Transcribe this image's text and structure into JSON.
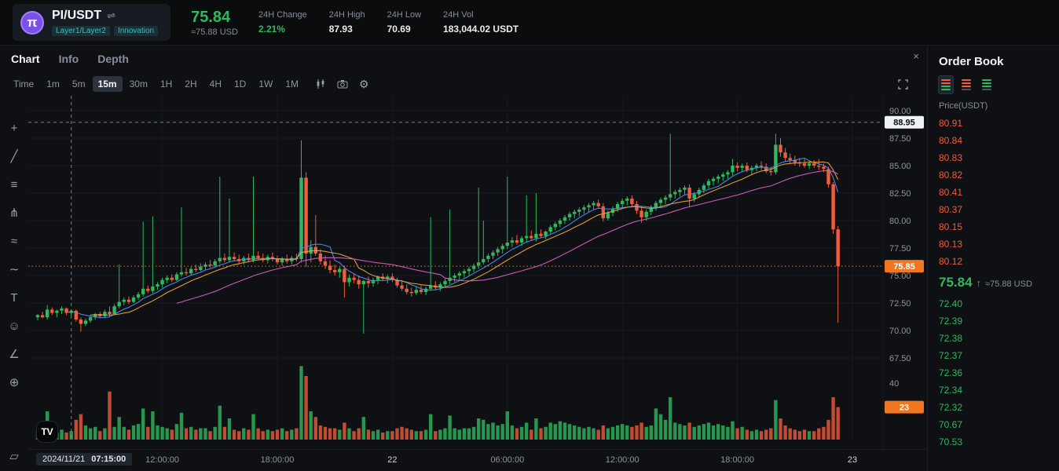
{
  "header": {
    "pair": "PI/USDT",
    "swap_icon": "⇌",
    "logo_symbol": "π",
    "tags": [
      "Layer1/Layer2",
      "Innovation"
    ],
    "price": "75.84",
    "approx_usd": "≈75.88 USD",
    "stats": [
      {
        "label": "24H Change",
        "value": "2.21%",
        "positive": true
      },
      {
        "label": "24H High",
        "value": "87.93"
      },
      {
        "label": "24H Low",
        "value": "70.69"
      },
      {
        "label": "24H Vol",
        "value": "183,044.02 USDT"
      }
    ]
  },
  "icons": {
    "close": "×",
    "gear": "⚙"
  },
  "tabs": [
    {
      "label": "Chart",
      "active": true
    },
    {
      "label": "Info",
      "active": false
    },
    {
      "label": "Depth",
      "active": false
    }
  ],
  "toolbar": {
    "intervals": [
      "Time",
      "1m",
      "5m",
      "15m",
      "30m",
      "1H",
      "2H",
      "4H",
      "1D",
      "1W",
      "1M"
    ],
    "active_interval": "15m"
  },
  "tools": [
    {
      "name": "crosshair-tool",
      "glyph": "+"
    },
    {
      "name": "trendline-tool",
      "glyph": "╱"
    },
    {
      "name": "horizontal-lines-tool",
      "glyph": "≡"
    },
    {
      "name": "pitchfork-tool",
      "glyph": "⋔"
    },
    {
      "name": "pattern-tool",
      "glyph": "≈"
    },
    {
      "name": "brush-tool",
      "glyph": "∼"
    },
    {
      "name": "text-tool",
      "glyph": "T"
    },
    {
      "name": "emoji-tool",
      "glyph": "☺"
    },
    {
      "name": "ruler-tool",
      "glyph": "∠"
    },
    {
      "name": "zoom-tool",
      "glyph": "⊕"
    },
    {
      "name": "edit-tool",
      "glyph": "▱",
      "bottom": true
    }
  ],
  "watermark": "TV",
  "chart_data": {
    "type": "candlestick",
    "symbol": "PI/USDT",
    "interval": "15m",
    "price_axis_ticks": [
      "90.00",
      "87.50",
      "85.00",
      "82.50",
      "80.00",
      "77.50",
      "75.00",
      "72.50",
      "70.00",
      "67.50"
    ],
    "volume_tick": "40",
    "last_price_label": "75.85",
    "last_volume_label": "23",
    "crosshair": {
      "price": "88.95",
      "date": "2024/11/21",
      "time": "07:15:00",
      "candle_index": 7
    },
    "time_axis": [
      {
        "label": "12:00:00",
        "index": 26
      },
      {
        "label": "18:00:00",
        "index": 50
      },
      {
        "label": "22",
        "index": 74,
        "date": true
      },
      {
        "label": "06:00:00",
        "index": 98
      },
      {
        "label": "12:00:00",
        "index": 122
      },
      {
        "label": "18:00:00",
        "index": 146
      },
      {
        "label": "23",
        "index": 170,
        "date": true
      }
    ],
    "ma_periods": {
      "fast": 7,
      "mid": 12,
      "slow": 30
    },
    "candles": [
      [
        71.2,
        71.5,
        70.9,
        71.4,
        6
      ],
      [
        71.4,
        71.7,
        71.1,
        71.2,
        5
      ],
      [
        71.2,
        72.3,
        71.0,
        71.9,
        20
      ],
      [
        71.9,
        72.1,
        71.4,
        71.6,
        6
      ],
      [
        71.6,
        71.9,
        71.2,
        71.8,
        5
      ],
      [
        71.8,
        72.2,
        71.5,
        72.0,
        7
      ],
      [
        72.0,
        72.1,
        71.4,
        71.6,
        5
      ],
      [
        71.6,
        71.9,
        71.3,
        71.8,
        6
      ],
      [
        71.8,
        71.9,
        70.8,
        71.0,
        14
      ],
      [
        71.0,
        71.2,
        69.9,
        70.6,
        18
      ],
      [
        70.6,
        71.1,
        70.4,
        70.9,
        10
      ],
      [
        70.9,
        71.4,
        70.7,
        71.2,
        8
      ],
      [
        71.2,
        71.6,
        71.0,
        71.5,
        9
      ],
      [
        71.5,
        71.7,
        71.1,
        71.3,
        6
      ],
      [
        71.3,
        71.9,
        71.2,
        71.7,
        8
      ],
      [
        71.7,
        72.2,
        71.3,
        71.5,
        34
      ],
      [
        71.5,
        72.4,
        71.4,
        72.2,
        9
      ],
      [
        72.2,
        76.0,
        72.0,
        72.6,
        16
      ],
      [
        72.6,
        73.0,
        72.3,
        72.8,
        9
      ],
      [
        72.8,
        73.1,
        72.4,
        72.6,
        7
      ],
      [
        72.6,
        73.2,
        72.5,
        73.0,
        10
      ],
      [
        73.0,
        73.5,
        72.8,
        73.3,
        11
      ],
      [
        73.3,
        79.9,
        73.1,
        73.8,
        22
      ],
      [
        73.8,
        74.1,
        73.4,
        73.6,
        9
      ],
      [
        73.6,
        80.4,
        73.4,
        74.0,
        20
      ],
      [
        74.0,
        74.4,
        73.7,
        74.2,
        10
      ],
      [
        74.2,
        74.8,
        73.9,
        74.6,
        9
      ],
      [
        74.6,
        75.0,
        74.3,
        74.8,
        8
      ],
      [
        74.8,
        75.1,
        74.4,
        74.6,
        7
      ],
      [
        74.6,
        75.3,
        74.5,
        75.1,
        11
      ],
      [
        75.1,
        81.2,
        74.9,
        75.3,
        19
      ],
      [
        75.3,
        75.7,
        75.0,
        75.2,
        8
      ],
      [
        75.2,
        75.8,
        75.0,
        75.6,
        9
      ],
      [
        75.6,
        76.0,
        75.3,
        75.5,
        7
      ],
      [
        75.5,
        76.1,
        75.4,
        75.8,
        8
      ],
      [
        75.8,
        76.2,
        75.5,
        76.0,
        8
      ],
      [
        76.0,
        76.4,
        75.7,
        75.9,
        6
      ],
      [
        75.9,
        76.5,
        75.8,
        76.3,
        9
      ],
      [
        76.3,
        84.0,
        76.1,
        76.6,
        24
      ],
      [
        76.6,
        77.0,
        76.2,
        76.4,
        9
      ],
      [
        76.4,
        82.0,
        76.2,
        76.7,
        15
      ],
      [
        76.7,
        77.1,
        76.3,
        76.5,
        7
      ],
      [
        76.5,
        76.9,
        76.1,
        76.3,
        6
      ],
      [
        76.3,
        76.8,
        76.0,
        76.6,
        8
      ],
      [
        76.6,
        77.0,
        76.2,
        76.4,
        7
      ],
      [
        76.4,
        84.0,
        76.2,
        76.8,
        18
      ],
      [
        76.8,
        77.2,
        76.4,
        76.6,
        8
      ],
      [
        76.6,
        77.0,
        76.2,
        76.4,
        6
      ],
      [
        76.4,
        76.9,
        76.1,
        76.7,
        7
      ],
      [
        76.7,
        77.1,
        76.3,
        76.5,
        6
      ],
      [
        76.5,
        76.8,
        76.0,
        76.2,
        7
      ],
      [
        76.2,
        76.7,
        75.9,
        76.5,
        8
      ],
      [
        76.5,
        76.9,
        76.1,
        76.3,
        6
      ],
      [
        76.3,
        76.8,
        76.0,
        76.6,
        7
      ],
      [
        76.6,
        77.0,
        76.3,
        76.5,
        8
      ],
      [
        76.5,
        87.3,
        76.2,
        83.9,
        52
      ],
      [
        83.9,
        84.4,
        75.8,
        77.0,
        45
      ],
      [
        77.0,
        78.2,
        76.2,
        77.6,
        20
      ],
      [
        77.6,
        80.5,
        76.8,
        77.0,
        16
      ],
      [
        77.0,
        77.4,
        76.0,
        76.3,
        10
      ],
      [
        76.3,
        76.8,
        75.6,
        75.9,
        9
      ],
      [
        75.9,
        76.4,
        75.2,
        75.5,
        8
      ],
      [
        75.5,
        76.0,
        75.0,
        75.3,
        8
      ],
      [
        75.3,
        75.8,
        74.8,
        75.6,
        7
      ],
      [
        75.6,
        75.9,
        73.0,
        74.4,
        12
      ],
      [
        74.4,
        75.1,
        74.0,
        74.8,
        8
      ],
      [
        74.8,
        75.2,
        74.3,
        74.6,
        6
      ],
      [
        74.6,
        75.0,
        73.8,
        74.2,
        8
      ],
      [
        74.2,
        74.6,
        69.7,
        74.5,
        16
      ],
      [
        74.5,
        74.9,
        73.9,
        74.3,
        7
      ],
      [
        74.3,
        74.8,
        74.0,
        74.6,
        6
      ],
      [
        74.6,
        75.0,
        74.2,
        74.9,
        7
      ],
      [
        74.9,
        75.2,
        74.5,
        74.7,
        5
      ],
      [
        74.7,
        75.1,
        74.3,
        74.9,
        6
      ],
      [
        74.9,
        75.2,
        74.4,
        74.6,
        6
      ],
      [
        74.6,
        74.8,
        73.9,
        74.1,
        8
      ],
      [
        74.1,
        74.5,
        73.6,
        73.8,
        9
      ],
      [
        73.8,
        74.2,
        73.3,
        73.5,
        8
      ],
      [
        73.5,
        73.9,
        73.1,
        73.4,
        7
      ],
      [
        73.4,
        74.0,
        73.2,
        73.7,
        6
      ],
      [
        73.7,
        74.1,
        73.3,
        73.5,
        6
      ],
      [
        73.5,
        74.0,
        73.2,
        73.8,
        7
      ],
      [
        73.8,
        80.3,
        73.6,
        74.1,
        18
      ],
      [
        74.1,
        74.5,
        73.7,
        73.9,
        6
      ],
      [
        73.9,
        74.4,
        73.6,
        74.2,
        7
      ],
      [
        74.2,
        74.7,
        73.9,
        74.5,
        8
      ],
      [
        74.5,
        81.0,
        74.2,
        74.8,
        17
      ],
      [
        74.8,
        75.2,
        74.4,
        75.0,
        8
      ],
      [
        75.0,
        75.4,
        74.6,
        75.2,
        7
      ],
      [
        75.2,
        75.6,
        74.8,
        75.4,
        8
      ],
      [
        75.4,
        75.8,
        75.0,
        75.6,
        8
      ],
      [
        75.6,
        76.1,
        75.3,
        75.9,
        9
      ],
      [
        75.9,
        83.0,
        75.6,
        76.2,
        15
      ],
      [
        76.2,
        80.0,
        76.0,
        76.5,
        14
      ],
      [
        76.5,
        77.0,
        76.2,
        76.8,
        11
      ],
      [
        76.8,
        77.3,
        76.5,
        77.1,
        12
      ],
      [
        77.1,
        77.6,
        76.8,
        77.4,
        10
      ],
      [
        77.4,
        77.9,
        77.0,
        77.7,
        11
      ],
      [
        77.7,
        84.0,
        77.4,
        78.0,
        20
      ],
      [
        78.0,
        78.5,
        77.6,
        78.2,
        10
      ],
      [
        78.2,
        78.7,
        77.8,
        78.0,
        8
      ],
      [
        78.0,
        78.6,
        77.7,
        78.4,
        9
      ],
      [
        78.4,
        82.3,
        78.0,
        78.6,
        12
      ],
      [
        78.6,
        79.1,
        78.2,
        78.4,
        7
      ],
      [
        78.4,
        82.5,
        78.1,
        78.8,
        15
      ],
      [
        78.8,
        79.2,
        78.4,
        78.6,
        8
      ],
      [
        78.6,
        79.1,
        78.3,
        79.0,
        9
      ],
      [
        79.0,
        79.6,
        78.8,
        79.4,
        12
      ],
      [
        79.4,
        79.9,
        79.1,
        79.7,
        11
      ],
      [
        79.7,
        80.2,
        79.4,
        80.0,
        13
      ],
      [
        80.0,
        80.5,
        79.7,
        80.3,
        12
      ],
      [
        80.3,
        80.8,
        80.0,
        80.6,
        11
      ],
      [
        80.6,
        81.0,
        80.2,
        80.8,
        10
      ],
      [
        80.8,
        81.2,
        80.4,
        81.0,
        9
      ],
      [
        81.0,
        81.4,
        80.6,
        81.2,
        8
      ],
      [
        81.2,
        81.6,
        80.8,
        81.4,
        9
      ],
      [
        81.4,
        81.8,
        81.0,
        81.6,
        8
      ],
      [
        81.6,
        81.9,
        81.1,
        81.3,
        7
      ],
      [
        81.3,
        81.6,
        79.9,
        80.2,
        10
      ],
      [
        80.2,
        80.9,
        80.0,
        80.7,
        8
      ],
      [
        80.7,
        81.3,
        80.4,
        81.1,
        9
      ],
      [
        81.1,
        81.7,
        80.8,
        81.5,
        10
      ],
      [
        81.5,
        82.0,
        81.2,
        81.8,
        11
      ],
      [
        81.8,
        82.2,
        81.4,
        82.0,
        10
      ],
      [
        82.0,
        82.3,
        81.2,
        81.5,
        9
      ],
      [
        81.5,
        81.8,
        80.6,
        80.9,
        10
      ],
      [
        80.9,
        81.3,
        79.8,
        80.3,
        12
      ],
      [
        80.3,
        81.0,
        80.0,
        80.8,
        9
      ],
      [
        80.8,
        81.4,
        80.5,
        81.2,
        10
      ],
      [
        81.2,
        81.8,
        80.9,
        81.6,
        22
      ],
      [
        81.6,
        82.1,
        81.3,
        81.9,
        18
      ],
      [
        81.9,
        82.3,
        81.5,
        82.1,
        14
      ],
      [
        82.1,
        87.9,
        81.8,
        82.4,
        30
      ],
      [
        82.4,
        82.8,
        82.0,
        82.6,
        12
      ],
      [
        82.6,
        83.0,
        82.2,
        82.8,
        11
      ],
      [
        82.8,
        83.2,
        82.4,
        83.0,
        10
      ],
      [
        83.0,
        83.3,
        81.2,
        82.0,
        12
      ],
      [
        82.0,
        82.6,
        81.7,
        82.4,
        9
      ],
      [
        82.4,
        83.0,
        82.1,
        82.8,
        10
      ],
      [
        82.8,
        83.4,
        82.5,
        83.2,
        11
      ],
      [
        83.2,
        83.8,
        82.9,
        83.6,
        12
      ],
      [
        83.6,
        84.0,
        83.2,
        83.8,
        10
      ],
      [
        83.8,
        84.2,
        83.4,
        84.0,
        11
      ],
      [
        84.0,
        84.4,
        83.6,
        84.2,
        10
      ],
      [
        84.2,
        84.6,
        83.8,
        84.4,
        9
      ],
      [
        84.4,
        85.6,
        84.1,
        85.0,
        13
      ],
      [
        85.0,
        85.3,
        84.5,
        84.8,
        8
      ],
      [
        84.8,
        85.2,
        84.4,
        85.0,
        9
      ],
      [
        85.0,
        85.3,
        84.4,
        84.6,
        7
      ],
      [
        84.6,
        85.0,
        84.2,
        84.8,
        6
      ],
      [
        84.8,
        85.2,
        84.5,
        85.0,
        7
      ],
      [
        85.0,
        85.4,
        84.6,
        84.9,
        6
      ],
      [
        84.9,
        85.2,
        84.3,
        84.5,
        7
      ],
      [
        84.5,
        84.9,
        84.1,
        84.4,
        8
      ],
      [
        84.4,
        87.9,
        84.2,
        86.9,
        28
      ],
      [
        86.9,
        87.5,
        85.8,
        86.2,
        15
      ],
      [
        86.2,
        86.6,
        85.4,
        85.7,
        10
      ],
      [
        85.7,
        86.1,
        85.2,
        85.5,
        8
      ],
      [
        85.5,
        85.9,
        85.0,
        85.3,
        7
      ],
      [
        85.3,
        85.7,
        84.9,
        85.2,
        6
      ],
      [
        85.2,
        85.6,
        84.8,
        85.0,
        7
      ],
      [
        85.0,
        85.4,
        84.7,
        85.2,
        6
      ],
      [
        85.2,
        85.5,
        84.8,
        85.0,
        6
      ],
      [
        85.0,
        85.6,
        84.6,
        84.9,
        8
      ],
      [
        84.9,
        85.2,
        84.4,
        84.7,
        9
      ],
      [
        84.7,
        84.9,
        83.0,
        83.3,
        14
      ],
      [
        83.3,
        83.5,
        78.8,
        79.2,
        30
      ],
      [
        79.2,
        79.5,
        70.7,
        75.85,
        23
      ]
    ]
  },
  "order_book": {
    "title": "Order Book",
    "column_header": "Price(USDT)",
    "asks": [
      "80.91",
      "80.84",
      "80.83",
      "80.82",
      "80.41",
      "80.37",
      "80.15",
      "80.13",
      "80.12"
    ],
    "last_price": "75.84",
    "arrow": "↑",
    "last_price_usd": "≈75.88 USD",
    "bids": [
      "72.40",
      "72.39",
      "72.38",
      "72.37",
      "72.36",
      "72.34",
      "72.32",
      "70.67",
      "70.53"
    ]
  },
  "colors": {
    "up": "#2fb85e",
    "down": "#ee5d3c",
    "tag": "#f0761f",
    "accent": "#1fc7c7",
    "ma_fast": "#4a8df0",
    "ma_mid": "#e8a33d",
    "ma_slow": "#d45fc0"
  }
}
